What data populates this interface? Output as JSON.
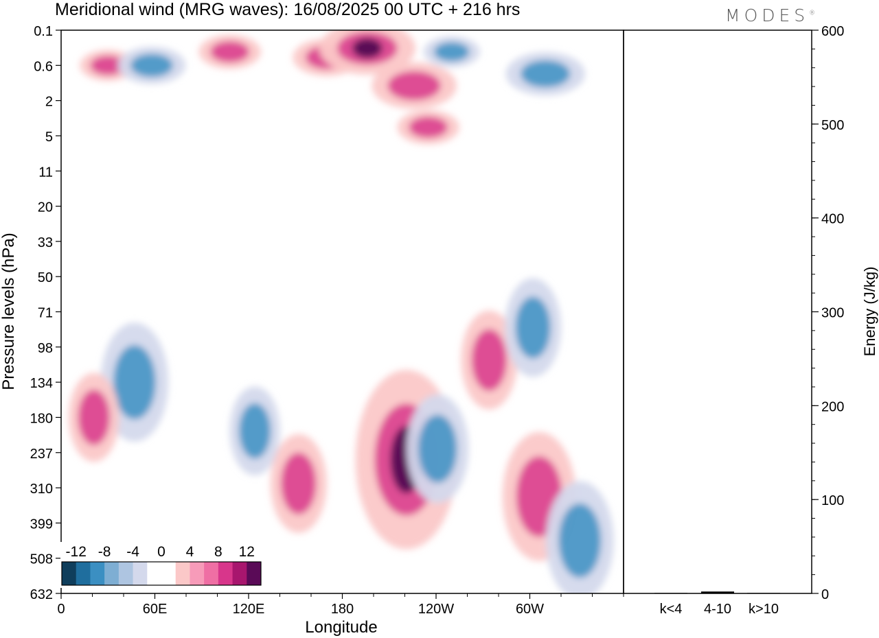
{
  "title": "Meridional wind (MRG waves):  16/08/2025  00 UTC  + 216 hrs",
  "logo": {
    "text": "MODES",
    "mark": "®"
  },
  "chart_data": [
    {
      "type": "heatmap",
      "title": "Meridional wind (MRG waves):  16/08/2025  00 UTC  + 216 hrs",
      "xlabel": "Longitude",
      "ylabel": "Pressure levels (hPa)",
      "x_ticks": [
        "0",
        "60E",
        "120E",
        "180",
        "120W",
        "60W"
      ],
      "x_tick_values": [
        0,
        60,
        120,
        180,
        240,
        300
      ],
      "xlim": [
        0,
        360
      ],
      "y_ticks": [
        "0.1",
        "0.6",
        "2",
        "5",
        "11",
        "20",
        "33",
        "50",
        "71",
        "98",
        "134",
        "180",
        "237",
        "310",
        "399",
        "508",
        "632"
      ],
      "colorbar": {
        "labels": [
          "-12",
          "-8",
          "-4",
          "0",
          "4",
          "8",
          "12"
        ],
        "colors": [
          "#0f3e5c",
          "#1f6e9e",
          "#3b8fc2",
          "#7eaed3",
          "#aec5e1",
          "#d4d9ec",
          "#ffffff",
          "#ffffff",
          "#fbc8c8",
          "#f79bb9",
          "#ef6fa4",
          "#d8368b",
          "#a8166e",
          "#5a0a57"
        ],
        "negative_color": "#3b8fc2",
        "positive_color": "#d8368b",
        "positive_light": "#fbc8c8",
        "negative_light": "#d4d9ec",
        "strong_color": "#5a0a57"
      },
      "features": [
        {
          "name": "upper-pink-0",
          "lon": 30,
          "level": 0.6,
          "value": 6
        },
        {
          "name": "upper-blue-0",
          "lon": 58,
          "level": 0.6,
          "value": -8
        },
        {
          "name": "upper-pink-1",
          "lon": 108,
          "level": 0.3,
          "value": 7
        },
        {
          "name": "upper-pink-2",
          "lon": 170,
          "level": 0.4,
          "value": 8
        },
        {
          "name": "upper-strong-0",
          "lon": 196,
          "level": 0.25,
          "value": 13
        },
        {
          "name": "upper-pink-3",
          "lon": 226,
          "level": 1.2,
          "value": 11
        },
        {
          "name": "upper-pink-4",
          "lon": 235,
          "level": 4,
          "value": 7
        },
        {
          "name": "upper-blue-1",
          "lon": 250,
          "level": 0.3,
          "value": -6
        },
        {
          "name": "upper-blue-2",
          "lon": 310,
          "level": 0.8,
          "value": -10
        },
        {
          "name": "lower-blue-0",
          "lon": 47,
          "level": 134,
          "value": -8
        },
        {
          "name": "lower-pink-0",
          "lon": 21,
          "level": 180,
          "value": 5
        },
        {
          "name": "lower-blue-1",
          "lon": 124,
          "level": 200,
          "value": -5
        },
        {
          "name": "lower-pink-1",
          "lon": 152,
          "level": 300,
          "value": 6
        },
        {
          "name": "lower-strong-0",
          "lon": 221,
          "level": 250,
          "value": 14
        },
        {
          "name": "lower-blue-2",
          "lon": 241,
          "level": 230,
          "value": -7
        },
        {
          "name": "lower-pink-2",
          "lon": 274,
          "level": 110,
          "value": 6
        },
        {
          "name": "lower-blue-3",
          "lon": 302,
          "level": 82,
          "value": -6
        },
        {
          "name": "lower-pink-3",
          "lon": 306,
          "level": 330,
          "value": 9
        },
        {
          "name": "lower-blue-4",
          "lon": 332,
          "level": 450,
          "value": -8
        }
      ]
    },
    {
      "type": "bar",
      "categories": [
        "k<4",
        "4-10",
        "k>10"
      ],
      "values": [
        0.5,
        2,
        0.5
      ],
      "ylabel": "Energy (J/kg)",
      "ylim": [
        0,
        600
      ],
      "y_ticks": [
        "0",
        "100",
        "200",
        "300",
        "400",
        "500",
        "600"
      ],
      "y_tick_values": [
        0,
        100,
        200,
        300,
        400,
        500,
        600
      ]
    }
  ]
}
